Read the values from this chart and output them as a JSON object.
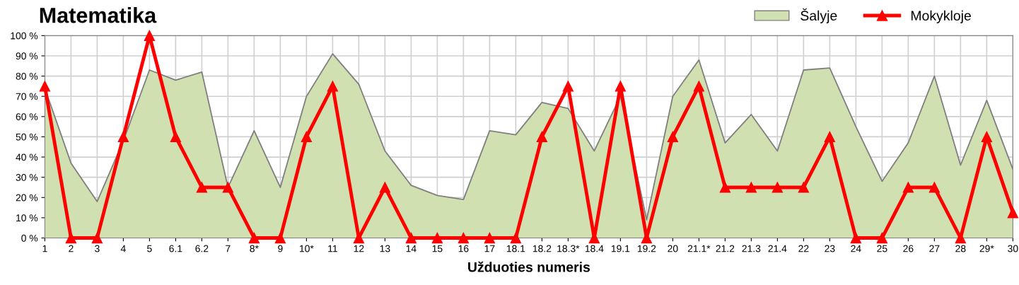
{
  "chart_data": {
    "type": "area",
    "title": "Matematika",
    "xlabel": "Užduoties numeris",
    "categories": [
      "1",
      "2",
      "3",
      "4",
      "5",
      "6.1",
      "6.2",
      "7",
      "8*",
      "9",
      "10*",
      "11",
      "12",
      "13",
      "14",
      "15",
      "16",
      "17",
      "18.1",
      "18.2",
      "18.3*",
      "18.4",
      "19.1",
      "19.2",
      "20",
      "21.1*",
      "21.2",
      "21.3",
      "21.4",
      "22",
      "23",
      "24",
      "25",
      "26",
      "27",
      "28",
      "29*",
      "30"
    ],
    "series": [
      {
        "name": "Šalyje",
        "color": "#d0e0b0",
        "values": [
          74,
          37,
          18,
          48,
          83,
          78,
          82,
          25,
          53,
          25,
          70,
          91,
          76,
          43,
          26,
          21,
          19,
          53,
          51,
          67,
          64,
          43,
          70,
          9,
          70,
          88,
          47,
          61,
          43,
          83,
          84,
          55,
          28,
          47,
          80,
          36,
          68,
          34
        ]
      },
      {
        "name": "Mokykloje",
        "type": "line",
        "color": "#ff0000",
        "marker": "triangle",
        "values": [
          75,
          0,
          0,
          50,
          100,
          50,
          25,
          25,
          0,
          0,
          50,
          75,
          0,
          25,
          0,
          0,
          0,
          0,
          0,
          50,
          75,
          0,
          75,
          0,
          50,
          75,
          25,
          25,
          25,
          25,
          50,
          0,
          0,
          25,
          25,
          0,
          50,
          12.5
        ]
      }
    ],
    "ylim": [
      0,
      100
    ],
    "yticks": [
      {
        "value": 0,
        "label": "0 %"
      },
      {
        "value": 10,
        "label": "10 %"
      },
      {
        "value": 20,
        "label": "20 %"
      },
      {
        "value": 30,
        "label": "30 %"
      },
      {
        "value": 40,
        "label": "40 %"
      },
      {
        "value": 50,
        "label": "50 %"
      },
      {
        "value": 60,
        "label": "60 %"
      },
      {
        "value": 70,
        "label": "70 %"
      },
      {
        "value": 80,
        "label": "80 %"
      },
      {
        "value": 90,
        "label": "90 %"
      },
      {
        "value": 100,
        "label": "100 %"
      }
    ],
    "grid": true,
    "legend": "top right"
  }
}
